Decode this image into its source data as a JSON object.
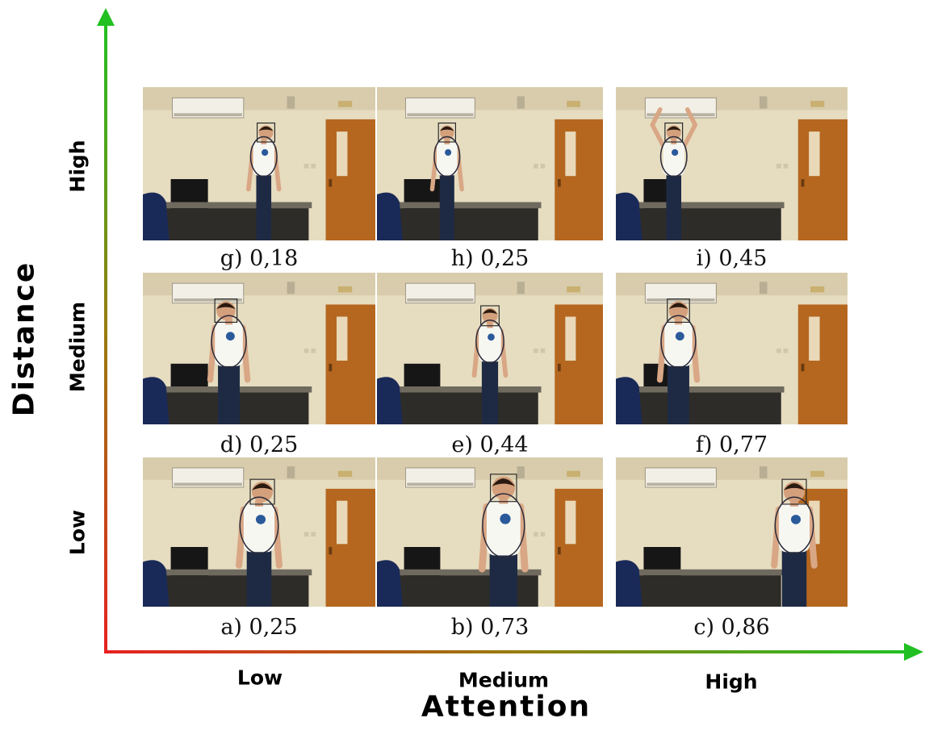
{
  "axes": {
    "x_title": "Attention",
    "y_title": "Distance",
    "x_levels": [
      "Low",
      "Medium",
      "High"
    ],
    "y_levels": [
      "Low",
      "Medium",
      "High"
    ]
  },
  "axis_colors": {
    "start": "#e62020",
    "mid": "#9a7a10",
    "end": "#22c022"
  },
  "panels": [
    {
      "id": "g",
      "caption": "g) 0,18",
      "attention": "Low",
      "distance": "High"
    },
    {
      "id": "h",
      "caption": "h) 0,25",
      "attention": "Medium",
      "distance": "High"
    },
    {
      "id": "i",
      "caption": "i) 0,45",
      "attention": "High",
      "distance": "High"
    },
    {
      "id": "d",
      "caption": "d) 0,25",
      "attention": "Low",
      "distance": "Medium"
    },
    {
      "id": "e",
      "caption": "e) 0,44",
      "attention": "Medium",
      "distance": "Medium"
    },
    {
      "id": "f",
      "caption": "f) 0,77",
      "attention": "High",
      "distance": "Medium"
    },
    {
      "id": "a",
      "caption": "a) 0,25",
      "attention": "Low",
      "distance": "Low"
    },
    {
      "id": "b",
      "caption": "b) 0,73",
      "attention": "Medium",
      "distance": "Low"
    },
    {
      "id": "c",
      "caption": "c) 0,86",
      "attention": "High",
      "distance": "Low"
    }
  ]
}
